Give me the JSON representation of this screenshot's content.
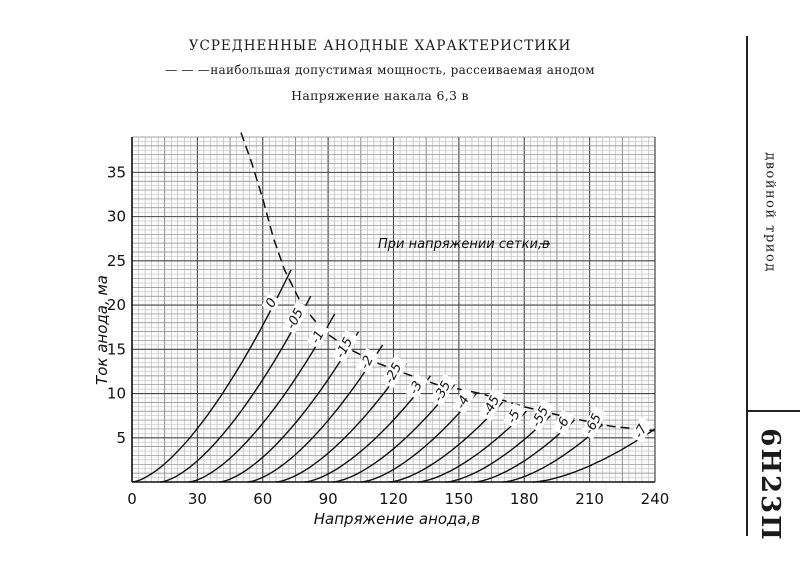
{
  "header": {
    "title": "УСРЕДНЕННЫЕ АНОДНЫЕ ХАРАКТЕРИСТИКИ",
    "subtitle": "— — —наибольшая допустимая мощность, рассеиваемая анодом",
    "heater": "Напряжение накала 6,3 в"
  },
  "side": {
    "tube_type": "двойной триод",
    "model": "6Н23П"
  },
  "chart_data": {
    "type": "line",
    "title": "УСРЕДНЕННЫЕ АНОДНЫЕ ХАРАКТЕРИСТИКИ",
    "xlabel": "Напряжение анода,в",
    "ylabel": "Ток анода, ма",
    "xlim": [
      0,
      240
    ],
    "ylim": [
      0,
      39
    ],
    "xticks": [
      0,
      30,
      60,
      90,
      120,
      150,
      180,
      210,
      240
    ],
    "yticks": [
      5,
      10,
      15,
      20,
      25,
      30,
      35
    ],
    "xtick_labels": [
      "0",
      "30",
      "60",
      "90",
      "120",
      "150",
      "180",
      "210",
      "240"
    ],
    "ytick_labels": [
      "5",
      "10",
      "15",
      "20",
      "25",
      "30",
      "35"
    ],
    "grid": true,
    "legend_text": "При напряжении сетки,в",
    "series": [
      {
        "name": "0",
        "label": "0",
        "offset": 0,
        "end": [
          73,
          24.0
        ]
      },
      {
        "name": "-0,5",
        "label": "-05",
        "offset": 13,
        "end": [
          82,
          21.0
        ]
      },
      {
        "name": "-1",
        "label": "-1",
        "offset": 26,
        "end": [
          93,
          19.0
        ]
      },
      {
        "name": "-1,5",
        "label": "-15",
        "offset": 40,
        "end": [
          104,
          17.0
        ]
      },
      {
        "name": "-2",
        "label": "-2",
        "offset": 53,
        "end": [
          115,
          15.5
        ]
      },
      {
        "name": "-2,5",
        "label": "-25",
        "offset": 66,
        "end": [
          126,
          13.5
        ]
      },
      {
        "name": "-3",
        "label": "-3",
        "offset": 79,
        "end": [
          137,
          12.0
        ]
      },
      {
        "name": "-3,5",
        "label": "-35",
        "offset": 92,
        "end": [
          148,
          11.0
        ]
      },
      {
        "name": "-4",
        "label": "-4",
        "offset": 105,
        "end": [
          158,
          10.0
        ]
      },
      {
        "name": "-4,5",
        "label": "-45",
        "offset": 118,
        "end": [
          170,
          9.0
        ]
      },
      {
        "name": "-5",
        "label": "-5",
        "offset": 131,
        "end": [
          181,
          8.0
        ]
      },
      {
        "name": "-5,5",
        "label": "-55",
        "offset": 144,
        "end": [
          192,
          7.5
        ]
      },
      {
        "name": "-6",
        "label": "-6",
        "offset": 157,
        "end": [
          203,
          7.0
        ]
      },
      {
        "name": "-6,5",
        "label": "-65",
        "offset": 170,
        "end": [
          216,
          6.5
        ]
      },
      {
        "name": "-7",
        "label": "-7",
        "offset": 184,
        "end": [
          240,
          6.0
        ]
      }
    ],
    "max_power_curve": {
      "name": "наибольшая допустимая мощность",
      "points": [
        [
          50,
          39.5
        ],
        [
          55,
          36
        ],
        [
          60,
          32
        ],
        [
          65,
          27.5
        ],
        [
          70,
          24
        ],
        [
          78,
          20
        ],
        [
          88,
          17
        ],
        [
          100,
          15
        ],
        [
          112,
          13.5
        ],
        [
          125,
          12.3
        ],
        [
          140,
          11
        ],
        [
          160,
          10
        ],
        [
          180,
          8.5
        ],
        [
          200,
          7.3
        ],
        [
          220,
          6.3
        ],
        [
          240,
          5.8
        ]
      ]
    }
  }
}
